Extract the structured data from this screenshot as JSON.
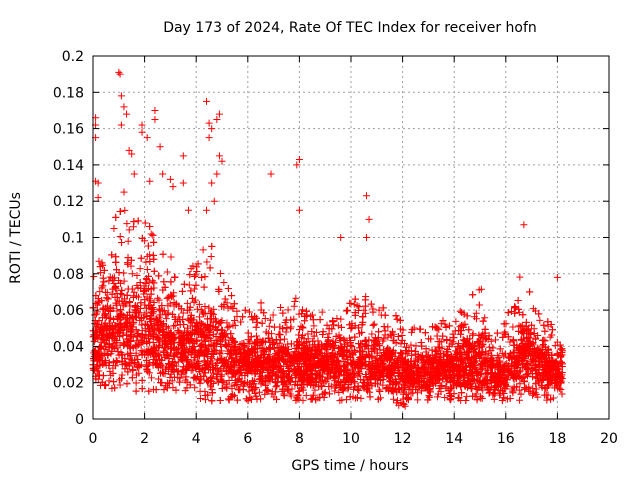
{
  "chart_data": {
    "type": "scatter",
    "title": "Day 173 of 2024, Rate Of TEC Index for receiver hofn",
    "xlabel": "GPS time / hours",
    "ylabel": "ROTI / TECUs",
    "xlim": [
      0,
      20
    ],
    "ylim": [
      0,
      0.2
    ],
    "x_ticks": [
      "0",
      "2",
      "4",
      "6",
      "8",
      "10",
      "12",
      "14",
      "16",
      "18",
      "20"
    ],
    "y_ticks": [
      "0",
      "0.02",
      "0.04",
      "0.06",
      "0.08",
      "0.1",
      "0.12",
      "0.14",
      "0.16",
      "0.18",
      "0.2"
    ],
    "grid": true,
    "marker": "plus",
    "color": "#ff0000",
    "series": [
      {
        "envelope": {
          "x": [
            0.0,
            0.5,
            1.0,
            1.5,
            2.0,
            2.5,
            3.0,
            3.5,
            4.0,
            4.5,
            5.0,
            5.5,
            6.0,
            6.5,
            7.0,
            7.5,
            8.0,
            8.5,
            9.0,
            9.5,
            10.0,
            10.5,
            11.0,
            11.5,
            12.0,
            12.5,
            13.0,
            13.5,
            14.0,
            14.5,
            15.0,
            15.5,
            16.0,
            16.5,
            17.0,
            17.5,
            18.0,
            18.2
          ],
          "lower": [
            0.02,
            0.015,
            0.015,
            0.015,
            0.015,
            0.015,
            0.015,
            0.015,
            0.01,
            0.01,
            0.01,
            0.01,
            0.01,
            0.01,
            0.01,
            0.01,
            0.01,
            0.01,
            0.01,
            0.01,
            0.01,
            0.01,
            0.01,
            0.01,
            0.005,
            0.01,
            0.01,
            0.01,
            0.01,
            0.01,
            0.01,
            0.01,
            0.01,
            0.01,
            0.01,
            0.01,
            0.01,
            0.01
          ],
          "upper": [
            0.09,
            0.085,
            0.12,
            0.11,
            0.11,
            0.1,
            0.09,
            0.08,
            0.09,
            0.1,
            0.08,
            0.065,
            0.06,
            0.065,
            0.06,
            0.065,
            0.07,
            0.06,
            0.06,
            0.06,
            0.065,
            0.07,
            0.065,
            0.06,
            0.055,
            0.05,
            0.05,
            0.055,
            0.055,
            0.065,
            0.075,
            0.045,
            0.055,
            0.08,
            0.07,
            0.06,
            0.045,
            0.04
          ],
          "density": [
            0.04,
            0.045,
            0.05,
            0.05,
            0.05,
            0.045,
            0.04,
            0.04,
            0.04,
            0.04,
            0.035,
            0.03,
            0.03,
            0.03,
            0.03,
            0.03,
            0.03,
            0.03,
            0.03,
            0.03,
            0.03,
            0.03,
            0.03,
            0.028,
            0.025,
            0.025,
            0.025,
            0.028,
            0.028,
            0.03,
            0.03,
            0.025,
            0.025,
            0.035,
            0.035,
            0.03,
            0.025,
            0.025
          ]
        },
        "outliers": [
          [
            0.1,
            0.166
          ],
          [
            0.1,
            0.162
          ],
          [
            0.1,
            0.155
          ],
          [
            0.1,
            0.131
          ],
          [
            0.2,
            0.13
          ],
          [
            0.2,
            0.122
          ],
          [
            1.0,
            0.191
          ],
          [
            1.05,
            0.19
          ],
          [
            1.1,
            0.178
          ],
          [
            1.2,
            0.172
          ],
          [
            1.1,
            0.162
          ],
          [
            1.3,
            0.168
          ],
          [
            1.4,
            0.148
          ],
          [
            1.5,
            0.146
          ],
          [
            1.2,
            0.125
          ],
          [
            1.6,
            0.135
          ],
          [
            1.9,
            0.162
          ],
          [
            1.9,
            0.158
          ],
          [
            2.1,
            0.155
          ],
          [
            2.4,
            0.17
          ],
          [
            2.4,
            0.165
          ],
          [
            2.6,
            0.15
          ],
          [
            2.2,
            0.131
          ],
          [
            2.7,
            0.135
          ],
          [
            3.0,
            0.132
          ],
          [
            3.1,
            0.128
          ],
          [
            3.5,
            0.145
          ],
          [
            3.5,
            0.13
          ],
          [
            3.7,
            0.115
          ],
          [
            4.4,
            0.175
          ],
          [
            4.5,
            0.163
          ],
          [
            4.6,
            0.16
          ],
          [
            4.9,
            0.168
          ],
          [
            4.8,
            0.165
          ],
          [
            4.5,
            0.155
          ],
          [
            4.9,
            0.145
          ],
          [
            5.0,
            0.142
          ],
          [
            4.8,
            0.135
          ],
          [
            4.6,
            0.13
          ],
          [
            4.7,
            0.12
          ],
          [
            4.4,
            0.115
          ],
          [
            6.9,
            0.135
          ],
          [
            8.0,
            0.143
          ],
          [
            7.9,
            0.14
          ],
          [
            8.0,
            0.115
          ],
          [
            9.6,
            0.1
          ],
          [
            10.6,
            0.123
          ],
          [
            10.7,
            0.11
          ],
          [
            10.6,
            0.1
          ],
          [
            16.7,
            0.107
          ],
          [
            18.0,
            0.078
          ]
        ]
      }
    ]
  }
}
